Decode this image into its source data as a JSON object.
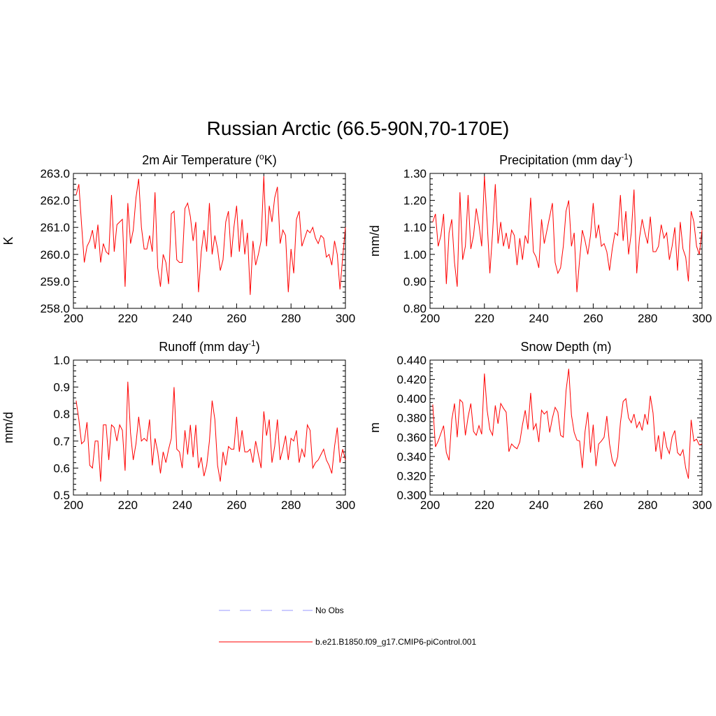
{
  "title": "Russian Arctic (66.5-90N,70-170E)",
  "chart_data": [
    {
      "type": "line",
      "title": "2m Air Temperature (°K)",
      "title_text": "2m Air Temperature (",
      "title_sup": "o",
      "title_tail": "K)",
      "xlabel": "",
      "ylabel": "K",
      "xlim": [
        200,
        300
      ],
      "ylim": [
        258.0,
        263.0
      ],
      "xticks": [
        200,
        220,
        240,
        260,
        280,
        300
      ],
      "yticks": [
        258.0,
        259.0,
        260.0,
        261.0,
        262.0,
        263.0
      ],
      "ytick_decimals": 1,
      "x_start": 201,
      "series": [
        {
          "name": "b.e21.B1850.f09_g17.CMIP6-piControl.001",
          "color": "#ff0000",
          "values": [
            262.2,
            262.6,
            261.1,
            259.7,
            260.3,
            260.5,
            260.9,
            260.2,
            261.1,
            259.7,
            260.4,
            260.1,
            260.0,
            262.2,
            260.1,
            261.1,
            261.2,
            261.3,
            258.8,
            261.9,
            260.4,
            260.9,
            262.1,
            262.8,
            261.0,
            260.2,
            260.2,
            260.7,
            260.1,
            262.3,
            259.5,
            258.8,
            260.0,
            259.7,
            258.9,
            261.5,
            261.6,
            259.8,
            259.7,
            259.7,
            261.7,
            261.9,
            261.4,
            260.5,
            261.2,
            258.6,
            260.1,
            260.9,
            260.1,
            261.9,
            260.0,
            260.7,
            260.2,
            259.4,
            259.8,
            261.2,
            261.6,
            259.9,
            261.0,
            261.8,
            260.1,
            261.3,
            260.0,
            260.8,
            258.5,
            260.5,
            259.6,
            260.0,
            260.5,
            262.9,
            260.3,
            261.8,
            261.2,
            262.1,
            262.5,
            260.4,
            260.9,
            260.7,
            258.6,
            260.2,
            259.3,
            261.3,
            261.6,
            260.3,
            260.6,
            260.9,
            260.8,
            261.0,
            260.6,
            260.4,
            260.7,
            260.6,
            259.9,
            260.0,
            259.6,
            260.5,
            260.0,
            258.7,
            259.9,
            261.0
          ]
        }
      ]
    },
    {
      "type": "line",
      "title": "Precipitation (mm day-1)",
      "title_text": "Precipitation (mm day",
      "title_sup": "-1",
      "title_tail": ")",
      "xlabel": "",
      "ylabel": "mm/d",
      "xlim": [
        200,
        300
      ],
      "ylim": [
        0.8,
        1.3
      ],
      "xticks": [
        200,
        220,
        240,
        260,
        280,
        300
      ],
      "yticks": [
        0.8,
        0.9,
        1.0,
        1.1,
        1.2,
        1.3
      ],
      "ytick_decimals": 2,
      "x_start": 201,
      "series": [
        {
          "name": "b.e21.B1850.f09_g17.CMIP6-piControl.001",
          "color": "#ff0000",
          "values": [
            1.12,
            1.15,
            1.03,
            1.07,
            1.15,
            0.89,
            1.08,
            1.13,
            0.97,
            0.88,
            1.23,
            0.98,
            1.03,
            1.22,
            1.02,
            1.07,
            1.17,
            1.11,
            1.03,
            1.29,
            1.12,
            0.93,
            1.08,
            1.26,
            1.04,
            1.12,
            1.03,
            1.08,
            1.02,
            1.09,
            1.07,
            0.96,
            1.06,
            0.98,
            1.07,
            1.04,
            1.21,
            1.01,
            0.99,
            0.95,
            1.13,
            1.04,
            1.09,
            1.14,
            1.19,
            0.97,
            0.93,
            0.95,
            1.03,
            1.16,
            1.2,
            1.03,
            1.08,
            0.86,
            0.98,
            1.09,
            1.05,
            1.0,
            1.07,
            1.19,
            1.06,
            1.11,
            1.03,
            1.04,
            1.01,
            0.94,
            1.02,
            1.08,
            1.07,
            1.22,
            1.05,
            1.16,
            1.0,
            1.08,
            1.24,
            0.93,
            1.06,
            1.13,
            1.08,
            1.04,
            1.14,
            1.01,
            1.01,
            1.03,
            1.11,
            1.06,
            1.08,
            0.98,
            1.03,
            1.1,
            0.94,
            1.12,
            1.02,
            0.99,
            0.9,
            1.16,
            1.12,
            1.03,
            1.0,
            1.09
          ]
        }
      ]
    },
    {
      "type": "line",
      "title": "Runoff (mm day-1)",
      "title_text": "Runoff (mm day",
      "title_sup": "-1",
      "title_tail": ")",
      "xlabel": "",
      "ylabel": "mm/d",
      "xlim": [
        200,
        300
      ],
      "ylim": [
        0.5,
        1.0
      ],
      "xticks": [
        200,
        220,
        240,
        260,
        280,
        300
      ],
      "yticks": [
        0.5,
        0.6,
        0.7,
        0.8,
        0.9,
        1.0
      ],
      "ytick_decimals": 1,
      "x_start": 201,
      "series": [
        {
          "name": "b.e21.B1850.f09_g17.CMIP6-piControl.001",
          "color": "#ff0000",
          "values": [
            0.85,
            0.78,
            0.69,
            0.7,
            0.77,
            0.61,
            0.6,
            0.7,
            0.7,
            0.55,
            0.76,
            0.76,
            0.63,
            0.76,
            0.75,
            0.7,
            0.76,
            0.74,
            0.59,
            0.92,
            0.73,
            0.63,
            0.69,
            0.79,
            0.7,
            0.71,
            0.7,
            0.78,
            0.61,
            0.71,
            0.66,
            0.58,
            0.66,
            0.62,
            0.67,
            0.71,
            0.9,
            0.67,
            0.66,
            0.6,
            0.74,
            0.65,
            0.76,
            0.64,
            0.76,
            0.6,
            0.64,
            0.57,
            0.61,
            0.7,
            0.85,
            0.78,
            0.61,
            0.55,
            0.66,
            0.61,
            0.68,
            0.67,
            0.67,
            0.79,
            0.66,
            0.74,
            0.66,
            0.66,
            0.67,
            0.62,
            0.7,
            0.65,
            0.6,
            0.81,
            0.72,
            0.78,
            0.62,
            0.68,
            0.78,
            0.63,
            0.67,
            0.72,
            0.63,
            0.71,
            0.7,
            0.74,
            0.62,
            0.67,
            0.64,
            0.76,
            0.74,
            0.6,
            0.62,
            0.63,
            0.65,
            0.67,
            0.63,
            0.61,
            0.58,
            0.68,
            0.75,
            0.62,
            0.67,
            0.63
          ]
        }
      ]
    },
    {
      "type": "line",
      "title": "Snow Depth (m)",
      "title_text": "Snow Depth (m)",
      "title_sup": "",
      "title_tail": "",
      "xlabel": "",
      "ylabel": "m",
      "xlim": [
        200,
        300
      ],
      "ylim": [
        0.3,
        0.44
      ],
      "xticks": [
        200,
        220,
        240,
        260,
        280,
        300
      ],
      "yticks": [
        0.3,
        0.32,
        0.34,
        0.36,
        0.38,
        0.4,
        0.42,
        0.44
      ],
      "ytick_decimals": 3,
      "x_start": 201,
      "series": [
        {
          "name": "b.e21.B1850.f09_g17.CMIP6-piControl.001",
          "color": "#ff0000",
          "values": [
            0.394,
            0.35,
            0.356,
            0.364,
            0.372,
            0.344,
            0.336,
            0.378,
            0.395,
            0.36,
            0.399,
            0.396,
            0.362,
            0.381,
            0.395,
            0.366,
            0.362,
            0.372,
            0.363,
            0.426,
            0.388,
            0.368,
            0.362,
            0.393,
            0.374,
            0.395,
            0.39,
            0.386,
            0.345,
            0.353,
            0.35,
            0.348,
            0.355,
            0.373,
            0.388,
            0.368,
            0.406,
            0.368,
            0.374,
            0.355,
            0.388,
            0.384,
            0.387,
            0.365,
            0.38,
            0.391,
            0.386,
            0.362,
            0.36,
            0.408,
            0.431,
            0.383,
            0.365,
            0.357,
            0.356,
            0.328,
            0.366,
            0.386,
            0.344,
            0.373,
            0.33,
            0.353,
            0.356,
            0.36,
            0.382,
            0.353,
            0.336,
            0.33,
            0.34,
            0.375,
            0.397,
            0.4,
            0.38,
            0.375,
            0.384,
            0.37,
            0.376,
            0.367,
            0.384,
            0.373,
            0.403,
            0.385,
            0.345,
            0.362,
            0.337,
            0.366,
            0.35,
            0.343,
            0.36,
            0.367,
            0.344,
            0.341,
            0.347,
            0.328,
            0.317,
            0.378,
            0.356,
            0.358,
            0.352,
            0.353
          ]
        }
      ]
    }
  ],
  "legend": [
    {
      "label": "No Obs",
      "color": "#9999ff",
      "dash": true
    },
    {
      "label": "b.e21.B1850.f09_g17.CMIP6-piControl.001",
      "color": "#ff0000",
      "dash": false
    }
  ]
}
